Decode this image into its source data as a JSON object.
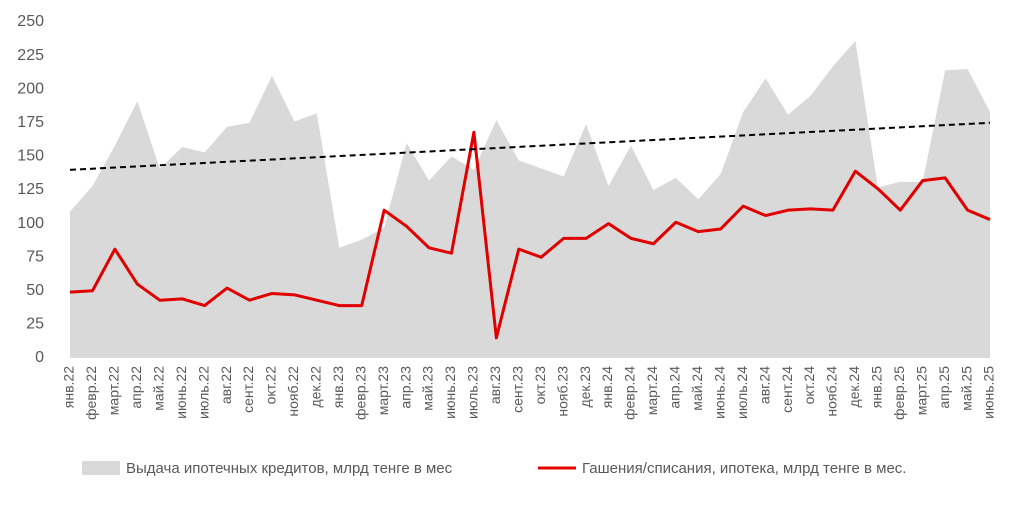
{
  "chart_data": {
    "type": "area-line",
    "categories": [
      "янв.22",
      "февр.22",
      "март.22",
      "апр.22",
      "май.22",
      "июнь.22",
      "июль.22",
      "авг.22",
      "сент.22",
      "окт.22",
      "нояб.22",
      "дек.22",
      "янв.23",
      "февр.23",
      "март.23",
      "апр.23",
      "май.23",
      "июнь.23",
      "июль.23",
      "авг.23",
      "сент.23",
      "окт.23",
      "нояб.23",
      "дек.23",
      "янв.24",
      "февр.24",
      "март.24",
      "апр.24",
      "май.24",
      "июнь.24",
      "июль.24",
      "авг.24",
      "сент.24",
      "окт.24",
      "нояб.24",
      "дек.24",
      "янв.25",
      "февр.25",
      "март.25",
      "апр.25",
      "май.25",
      "июнь.25"
    ],
    "series": [
      {
        "name": "Выдача ипотечных кредитов, млрд тенге в мес",
        "kind": "area",
        "color": "#d9d9d9",
        "values": [
          109,
          128,
          158,
          191,
          141,
          157,
          153,
          172,
          175,
          210,
          176,
          182,
          82,
          88,
          97,
          160,
          132,
          150,
          140,
          177,
          147,
          141,
          135,
          174,
          128,
          158,
          125,
          134,
          118,
          137,
          183,
          208,
          181,
          195,
          217,
          236,
          127,
          131,
          131,
          214,
          215,
          183
        ]
      },
      {
        "name": "Гашения/списания, ипотека, млрд тенге в мес.",
        "kind": "line",
        "color": "#e00000",
        "values": [
          49,
          50,
          81,
          55,
          43,
          44,
          39,
          52,
          43,
          48,
          47,
          43,
          39,
          39,
          110,
          98,
          82,
          78,
          168,
          15,
          81,
          75,
          89,
          89,
          100,
          89,
          85,
          101,
          94,
          96,
          113,
          106,
          110,
          111,
          110,
          139,
          126,
          110,
          132,
          134,
          110,
          103
        ]
      }
    ],
    "trendline": {
      "values": [
        140,
        175
      ],
      "color": "#000000"
    },
    "ylim": [
      0,
      250
    ],
    "yticks": [
      0,
      25,
      50,
      75,
      100,
      125,
      150,
      175,
      200,
      225,
      250
    ],
    "legend": "bottom"
  }
}
